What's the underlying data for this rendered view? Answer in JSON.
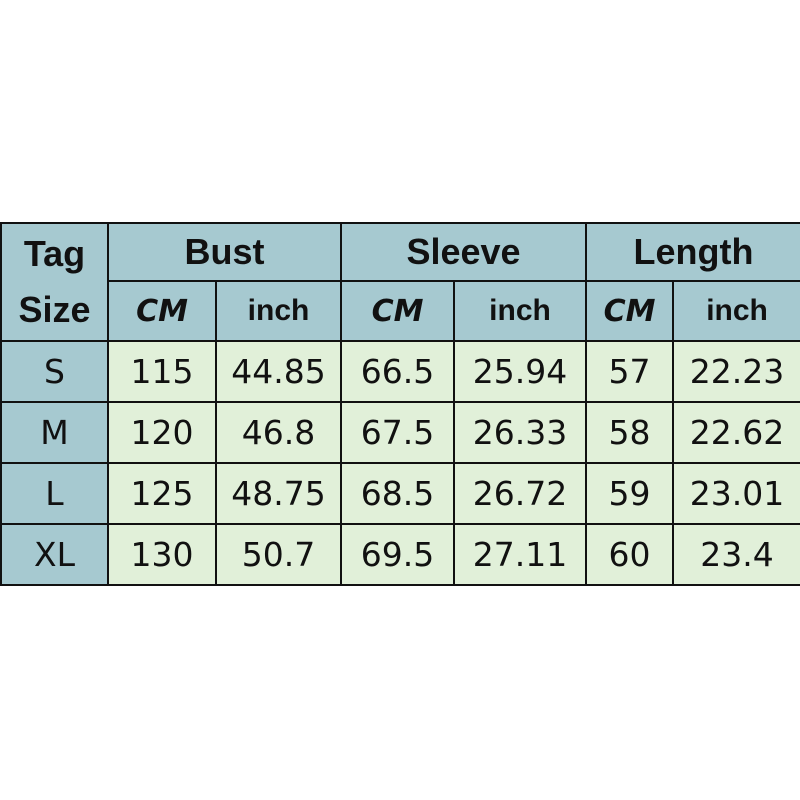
{
  "header": {
    "tag_line1": "Tag",
    "tag_line2": "Size",
    "groups": [
      "Bust",
      "Sleeve",
      "Length"
    ],
    "units": [
      "CM",
      "inch",
      "CM",
      "inch",
      "CM",
      "inch"
    ]
  },
  "rows": [
    {
      "size": "S",
      "values": [
        "115",
        "44.85",
        "66.5",
        "25.94",
        "57",
        "22.23"
      ]
    },
    {
      "size": "M",
      "values": [
        "120",
        "46.8",
        "67.5",
        "26.33",
        "58",
        "22.62"
      ]
    },
    {
      "size": "L",
      "values": [
        "125",
        "48.75",
        "68.5",
        "26.72",
        "59",
        "23.01"
      ]
    },
    {
      "size": "XL",
      "values": [
        "130",
        "50.7",
        "69.5",
        "27.11",
        "60",
        "23.4"
      ]
    }
  ],
  "colors": {
    "header_bg": "#a6c9d0",
    "cell_bg": "#e1f0d9",
    "border": "#111111"
  }
}
